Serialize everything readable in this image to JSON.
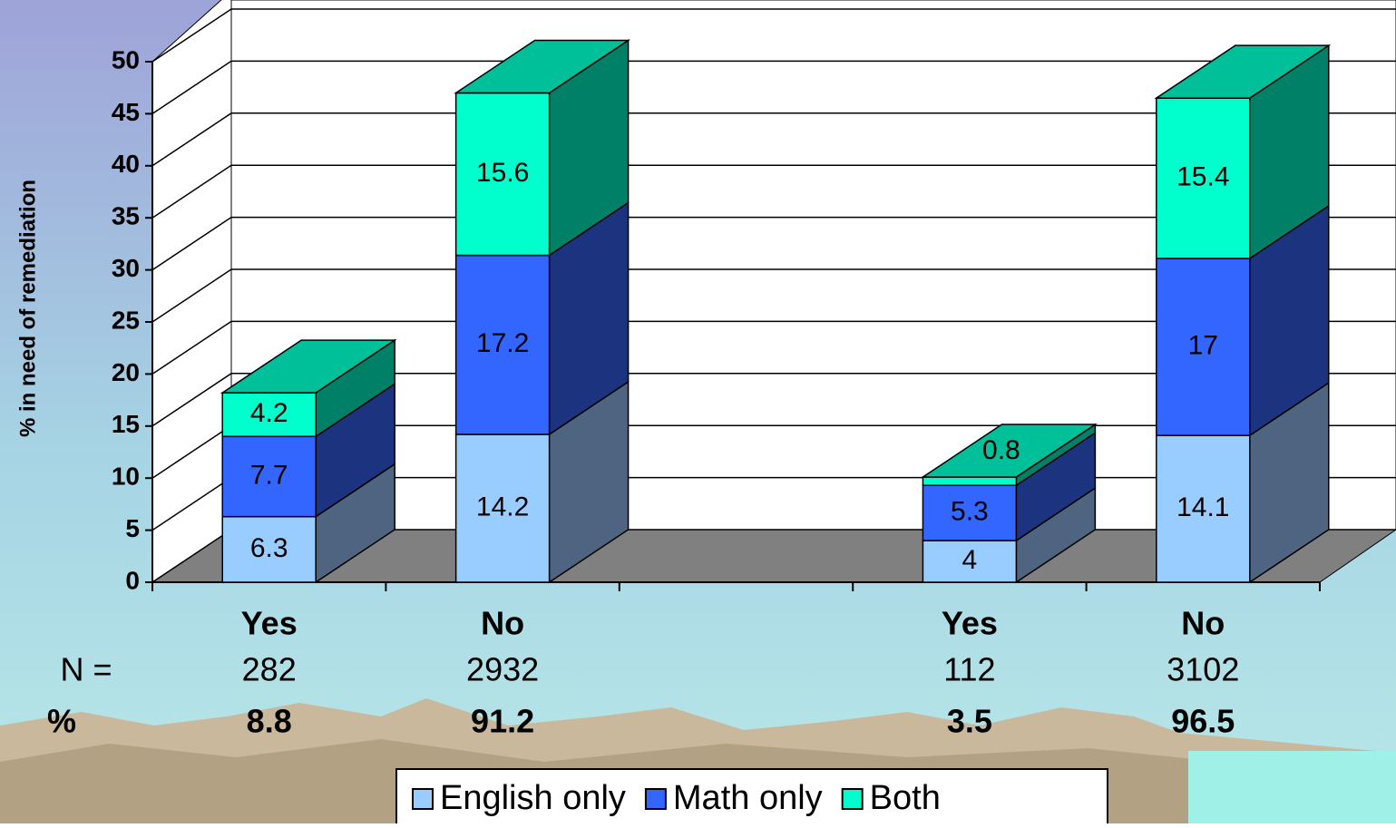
{
  "chart_data": {
    "type": "bar3d_stacked",
    "y_label": "% in need of remediation",
    "categories": [
      "Yes",
      "No",
      null,
      "Yes",
      "No"
    ],
    "series": [
      {
        "name": "English only",
        "color": "#99ccff",
        "side_color": "#4e6480",
        "values": [
          6.3,
          14.2,
          null,
          4,
          14.1
        ]
      },
      {
        "name": "Math only",
        "color": "#3366ff",
        "side_color": "#1c3480",
        "values": [
          7.7,
          17.2,
          null,
          5.3,
          17
        ]
      },
      {
        "name": "Both",
        "color": "#00ffcc",
        "side_color": "#008066",
        "top_color": "#00c09a",
        "values": [
          4.2,
          15.6,
          null,
          0.8,
          15.4
        ]
      }
    ],
    "ylim": [
      0,
      50
    ],
    "yticks": [
      0,
      5,
      10,
      15,
      20,
      25,
      30,
      35,
      40,
      45,
      50
    ],
    "grid": true,
    "n_row": {
      "label": "N  =",
      "values": [
        282,
        2932,
        null,
        112,
        3102
      ]
    },
    "pct_row": {
      "label": "%",
      "values": [
        8.8,
        91.2,
        null,
        3.5,
        96.5
      ]
    },
    "legend": "bottom"
  }
}
